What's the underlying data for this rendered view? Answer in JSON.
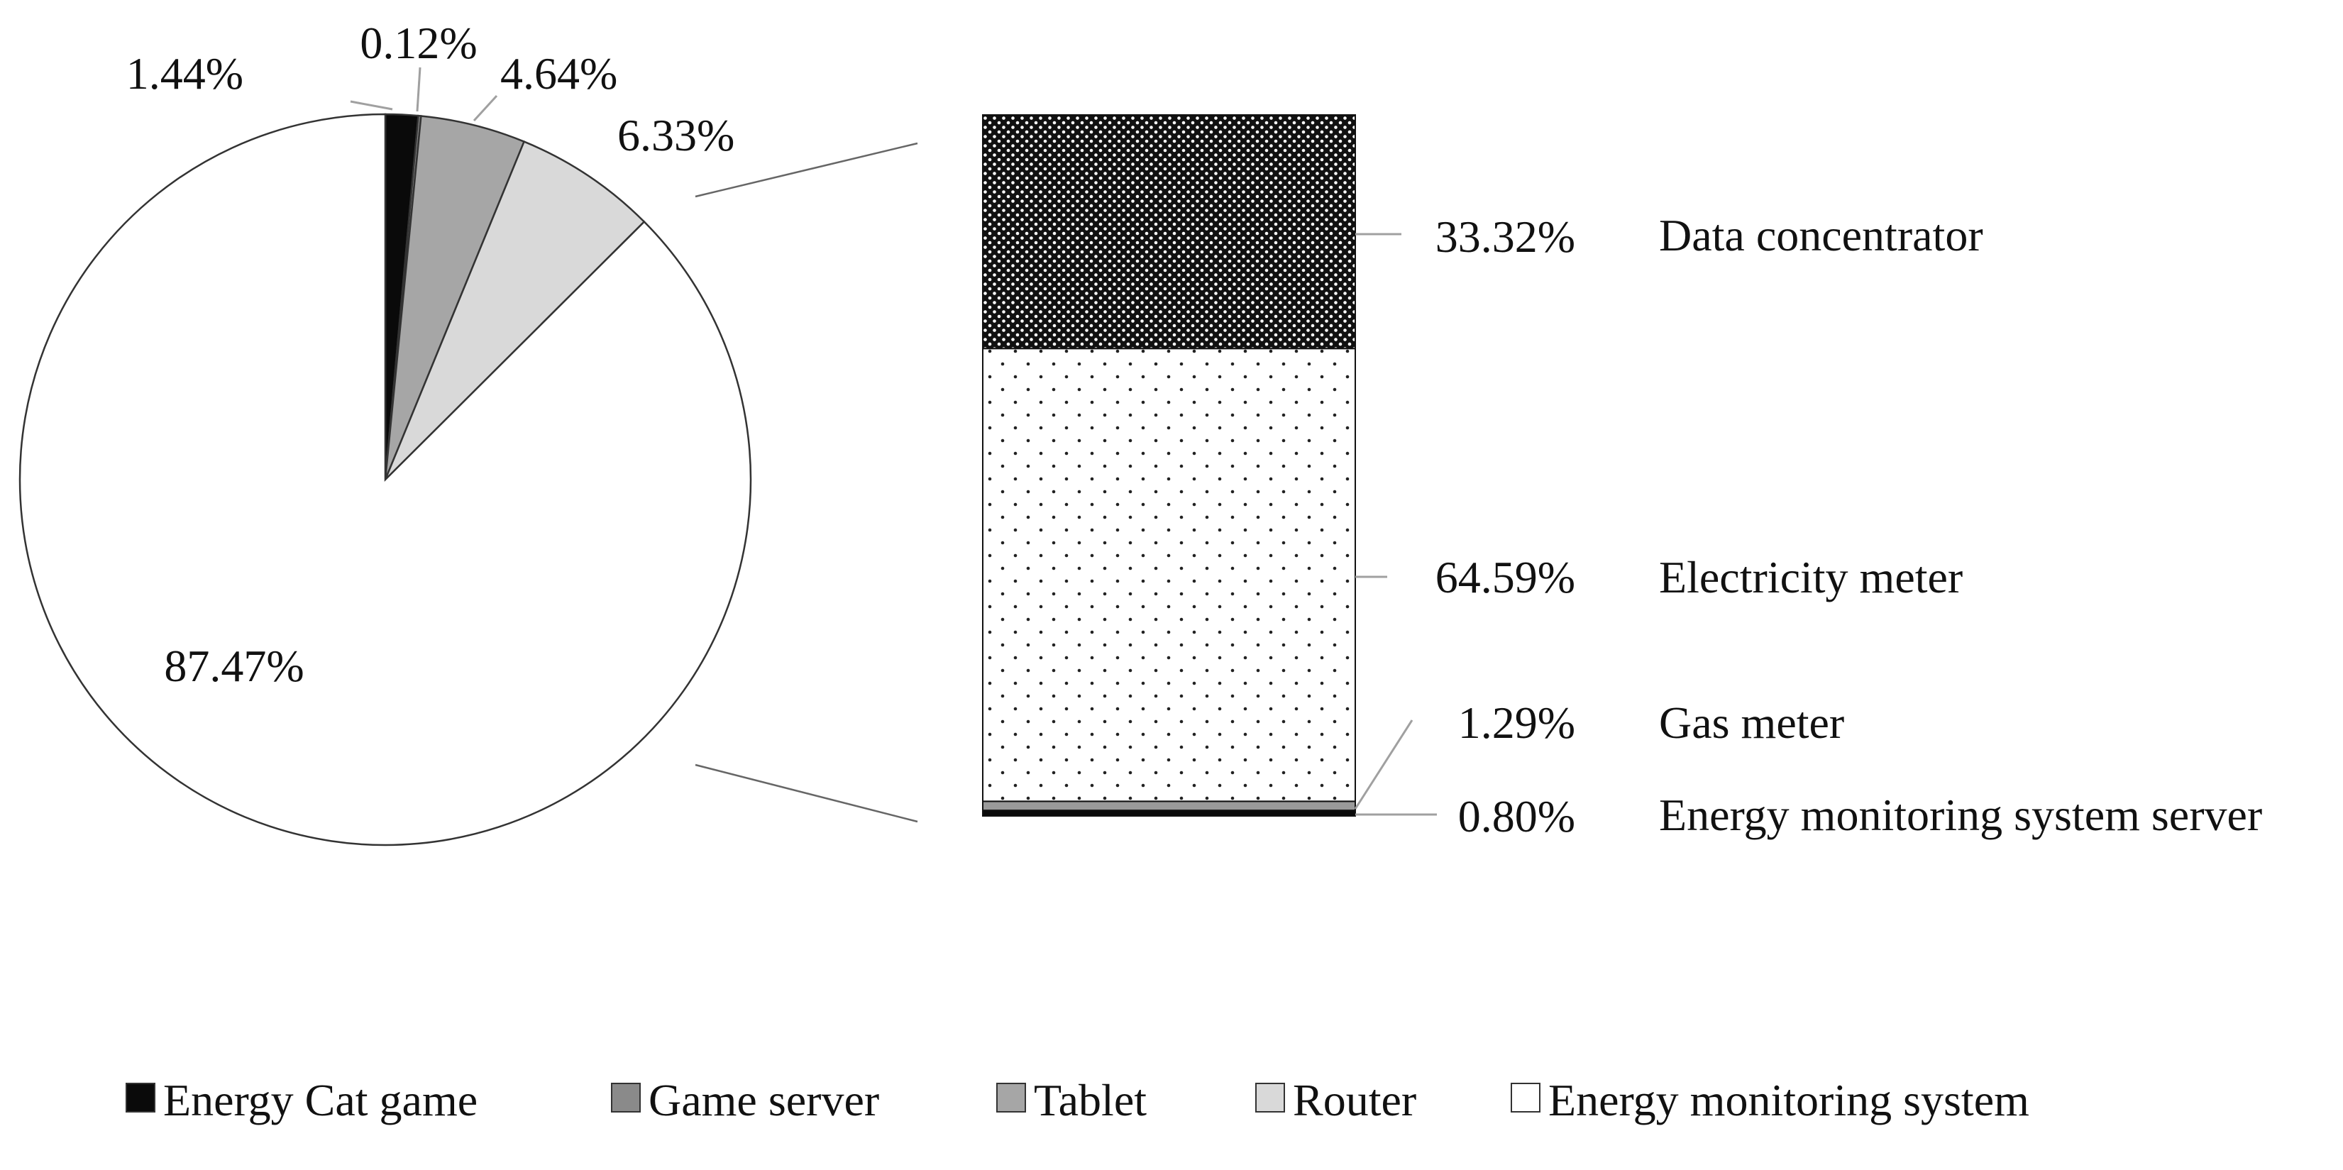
{
  "chart_data": [
    {
      "type": "pie",
      "categories": [
        "Energy Cat game",
        "Game server",
        "Tablet",
        "Router",
        "Energy monitoring system"
      ],
      "values": [
        1.44,
        0.12,
        4.64,
        6.33,
        87.47
      ],
      "value_labels": [
        "1.44%",
        "0.12%",
        "4.64%",
        "6.33%",
        "87.47%"
      ],
      "colors": [
        "#0a0a0a",
        "#8a8a8a",
        "#a6a6a6",
        "#d9d9d9",
        "#ffffff"
      ],
      "start": "top, clockwise",
      "legend": {
        "position": "bottom",
        "entries": [
          "Energy Cat game",
          "Game server",
          "Tablet",
          "Router",
          "Energy monitoring system"
        ]
      }
    },
    {
      "type": "bar",
      "stacked": true,
      "breakdown_of": "Energy monitoring system",
      "categories": [
        "Energy monitoring system server",
        "Gas meter",
        "Electricity meter",
        "Data concentrator"
      ],
      "values": [
        0.8,
        1.29,
        64.59,
        33.32
      ],
      "value_labels": [
        "0.80%",
        "1.29%",
        "64.59%",
        "33.32%"
      ],
      "fills": [
        "solid-black",
        "solid-gray",
        "sparse-dots",
        "dense-dots"
      ],
      "stack_order": "bottom to top"
    }
  ]
}
